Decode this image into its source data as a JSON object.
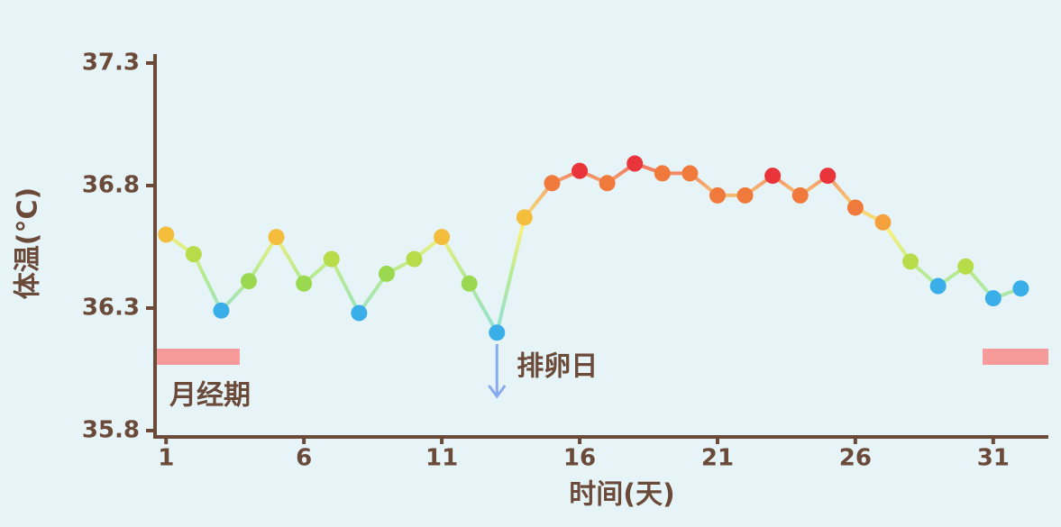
{
  "chart_data": {
    "type": "line",
    "x_label": "时间(天)",
    "y_label": "体温(°C)",
    "x": [
      1,
      2,
      3,
      4,
      5,
      6,
      7,
      8,
      9,
      10,
      11,
      12,
      13,
      14,
      15,
      16,
      17,
      18,
      19,
      20,
      21,
      22,
      23,
      24,
      25,
      26,
      27,
      28,
      29,
      30,
      31,
      32
    ],
    "series": [
      {
        "values": [
          36.6,
          36.52,
          36.29,
          36.41,
          36.59,
          36.4,
          36.5,
          36.28,
          36.44,
          36.5,
          36.59,
          36.4,
          36.2,
          36.67,
          36.81,
          36.86,
          36.81,
          36.89,
          36.85,
          36.85,
          36.76,
          36.76,
          36.84,
          36.76,
          36.84,
          36.71,
          36.65,
          36.49,
          36.39,
          36.47,
          36.34,
          36.38
        ],
        "colors": [
          "#f4be3c",
          "#b6dc4a",
          "#3aaee8",
          "#9ad850",
          "#f4be3c",
          "#9ad850",
          "#b6dc4a",
          "#3aaee8",
          "#9ad850",
          "#b6dc4a",
          "#f4be3c",
          "#9ad850",
          "#3aaee8",
          "#f4be3c",
          "#f07a3c",
          "#e8343a",
          "#f07a3c",
          "#e8343a",
          "#f07a3c",
          "#f07a3c",
          "#f07a3c",
          "#f07a3c",
          "#e8343a",
          "#f07a3c",
          "#e8343a",
          "#f07a3c",
          "#f4a03c",
          "#b6dc4a",
          "#3aaee8",
          "#b6dc4a",
          "#3aaee8",
          "#3aaee8"
        ]
      }
    ],
    "xlim": [
      0.6,
      33
    ],
    "xticks": [
      1,
      6,
      11,
      16,
      21,
      26,
      31
    ],
    "ylim": [
      35.8,
      37.3
    ],
    "yticks": [
      35.8,
      36.3,
      36.8,
      37.3
    ],
    "annotations": [
      {
        "text": "月经期"
      },
      {
        "text": "排卵日"
      }
    ]
  }
}
